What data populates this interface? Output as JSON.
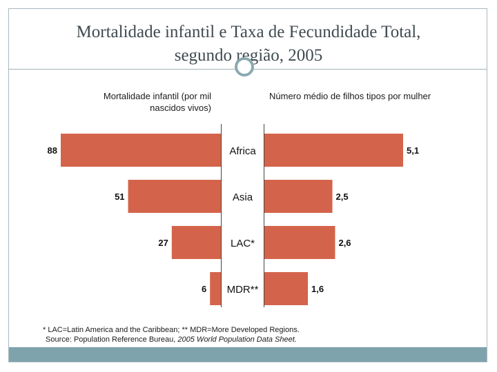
{
  "slide": {
    "title_line1": "Mortalidade infantil e Taxa de Fecundidade Total,",
    "title_line2": "segundo região, 2005",
    "footnote_line1": "* LAC=Latin America and the Caribbean; ** MDR=More Developed Regions.",
    "footnote_source_prefix": "Source: Population Reference Bureau, ",
    "footnote_source_italic": "2005 World Population Data Sheet."
  },
  "colors": {
    "bar": "#d3644b",
    "axis": "#444444",
    "label": "#111111"
  },
  "chart_data": {
    "type": "bar",
    "orientation": "horizontal",
    "layout": "back-to-back",
    "categories": [
      "Africa",
      "Asia",
      "LAC*",
      "MDR**"
    ],
    "series": [
      {
        "name": "Mortalidade infantil (por mil nascidos vivos)",
        "side": "left",
        "values": [
          88,
          51,
          27,
          6
        ],
        "labels": [
          "88",
          "51",
          "27",
          "6"
        ],
        "xlim": [
          0,
          88
        ]
      },
      {
        "name": "Número médio de filhos tipos por mulher",
        "side": "right",
        "values": [
          5.1,
          2.5,
          2.6,
          1.6
        ],
        "labels": [
          "5,1",
          "2,5",
          "2,6",
          "1,6"
        ],
        "xlim": [
          0,
          5.1
        ]
      }
    ],
    "left_title": "Mortalidade infantil (por mil nascidos vivos)",
    "right_title": "Número médio de filhos tipos por mulher"
  }
}
